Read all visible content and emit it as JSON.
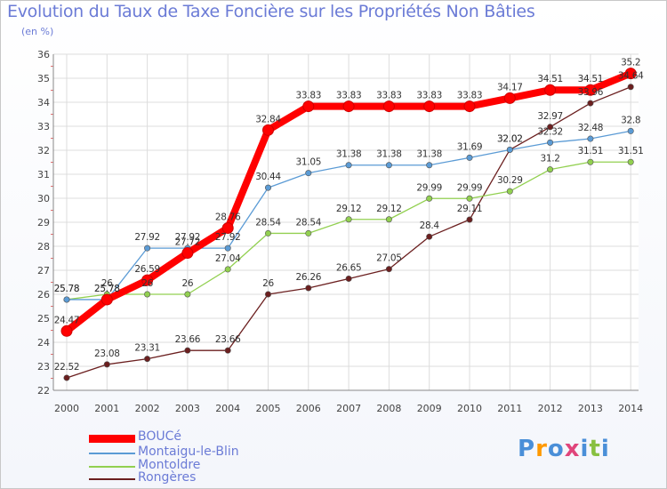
{
  "chart_data": {
    "type": "line",
    "title": "Evolution du Taux de Taxe Foncière sur les Propriétés Non Bâties",
    "subtitle": "(en %)",
    "x": [
      2000,
      2001,
      2002,
      2003,
      2004,
      2005,
      2006,
      2007,
      2008,
      2009,
      2010,
      2011,
      2012,
      2013,
      2014
    ],
    "ylim": [
      22,
      36
    ],
    "yticks": [
      22,
      23,
      24,
      25,
      26,
      27,
      28,
      29,
      30,
      31,
      32,
      33,
      34,
      35,
      36
    ],
    "grid": true,
    "legend_position": "bottom-left",
    "series": [
      {
        "name": "BOUCé",
        "color": "#ff0000",
        "values": [
          24.47,
          25.78,
          26.59,
          27.72,
          28.76,
          32.84,
          33.83,
          33.83,
          33.83,
          33.83,
          33.83,
          34.17,
          34.51,
          34.51,
          35.2
        ]
      },
      {
        "name": "Montaigu-le-Blin",
        "color": "#5b9bd5",
        "values": [
          25.78,
          25.78,
          27.92,
          27.92,
          27.92,
          30.44,
          31.05,
          31.38,
          31.38,
          31.38,
          31.69,
          32.02,
          32.32,
          32.48,
          32.8
        ]
      },
      {
        "name": "Montoldre",
        "color": "#92d050",
        "values": [
          25.78,
          26,
          26,
          26,
          27.04,
          28.54,
          28.54,
          29.12,
          29.12,
          29.99,
          29.99,
          30.29,
          31.2,
          31.51,
          31.51
        ]
      },
      {
        "name": "Rongères",
        "color": "#6b1f1f",
        "values": [
          22.52,
          23.08,
          23.31,
          23.66,
          23.66,
          26,
          26.26,
          26.65,
          27.05,
          28.4,
          29.11,
          32.02,
          32.97,
          33.96,
          34.64
        ]
      }
    ]
  },
  "logo": {
    "text": "Proxiti"
  }
}
